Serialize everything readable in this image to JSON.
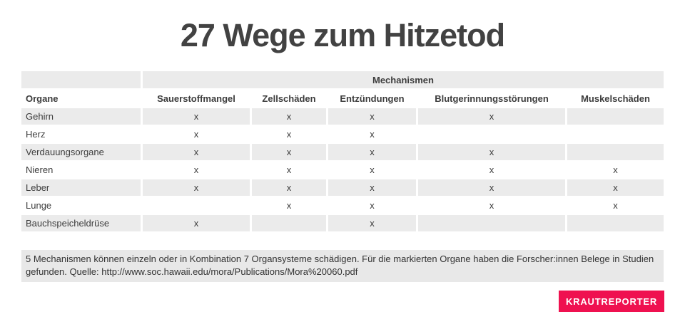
{
  "title": "27 Wege zum Hitzetod",
  "chart_data": {
    "type": "table",
    "title": "27 Wege zum Hitzetod",
    "column_group_label": "Mechanismen",
    "columns": [
      "Organe",
      "Sauerstoffmangel",
      "Zellschäden",
      "Entzündungen",
      "Blutgerinnungsstörungen",
      "Muskelschäden"
    ],
    "rows": [
      [
        "Gehirn",
        "x",
        "x",
        "x",
        "x",
        ""
      ],
      [
        "Herz",
        "x",
        "x",
        "x",
        "",
        ""
      ],
      [
        "Verdauungsorgane",
        "x",
        "x",
        "x",
        "x",
        ""
      ],
      [
        "Nieren",
        "x",
        "x",
        "x",
        "x",
        "x"
      ],
      [
        "Leber",
        "x",
        "x",
        "x",
        "x",
        "x"
      ],
      [
        "Lunge",
        "",
        "x",
        "x",
        "x",
        "x"
      ],
      [
        "Bauchspeicheldrüse",
        "x",
        "",
        "x",
        "",
        ""
      ]
    ],
    "mark_symbol": "x",
    "total_marks": 27,
    "layout": {
      "stripe_rows": "odd",
      "group_header_position": "top-center"
    }
  },
  "footer": {
    "note": "5 Mechanismen können einzeln oder in Kombination 7 Organsysteme schädigen. Für die markierten Organe haben die Forscher:innen Belege in Studien gefunden. Quelle: http://www.soc.hawaii.edu/mora/Publications/Mora%20060.pdf"
  },
  "branding": {
    "label": "KRAUTREPORTER",
    "color": "#ef1150"
  },
  "colors": {
    "stripe": "#ebebeb",
    "note_background": "#e8e8e8",
    "title_text": "#424242",
    "table_text": "#3c3c3c",
    "badge_background": "#ef1150",
    "badge_text": "#ffffff"
  }
}
